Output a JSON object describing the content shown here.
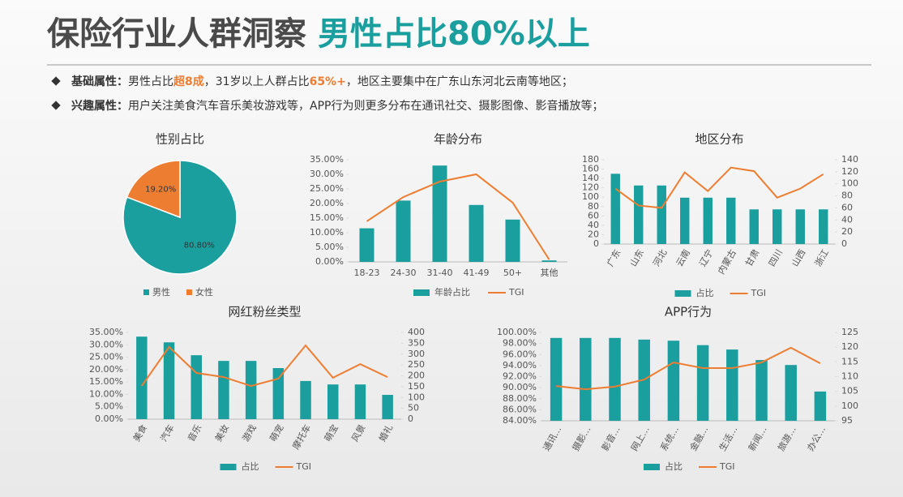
{
  "header": {
    "title": "保险行业人群洞察",
    "highlight": "男性占比80%以上"
  },
  "bullets": [
    {
      "label": "基础属性：",
      "segments": [
        {
          "text": "男性占比"
        },
        {
          "text": "超8成",
          "emphasis": true
        },
        {
          "text": "，31岁以上人群占比"
        },
        {
          "text": "65%+",
          "emphasis": true
        },
        {
          "text": "，地区主要集中在广东山东河北云南等地区；"
        }
      ]
    },
    {
      "label": "兴趣属性：",
      "segments": [
        {
          "text": "用户关注美食汽车音乐美妆游戏等，APP行为则更多分布在通讯社交、摄影图像、影音播放等；"
        }
      ]
    }
  ],
  "chart_data": [
    {
      "type": "pie",
      "title": "性别占比",
      "categories": [
        "男性",
        "女性"
      ],
      "values": [
        80.8,
        19.2
      ],
      "value_labels": [
        "80.80%",
        "19.20%"
      ],
      "colors": [
        "#1a9e9e",
        "#ed7d31"
      ]
    },
    {
      "type": "combo",
      "title": "年龄分布",
      "categories": [
        "18-23",
        "24-30",
        "31-40",
        "41-49",
        "50+",
        "其他"
      ],
      "ylim": [
        0,
        35
      ],
      "yticks": [
        {
          "value": 0,
          "label": "0.00%"
        },
        {
          "value": 5,
          "label": "5.00%"
        },
        {
          "value": 10,
          "label": "10.00%"
        },
        {
          "value": 15,
          "label": "15.00%"
        },
        {
          "value": 20,
          "label": "20.00%"
        },
        {
          "value": 25,
          "label": "25.00%"
        },
        {
          "value": 30,
          "label": "30.00%"
        },
        {
          "value": 35,
          "label": "35.00%"
        }
      ],
      "series": [
        {
          "name": "年龄占比",
          "type": "bar",
          "color": "#1a9e9e",
          "values": [
            11.5,
            21,
            33,
            19.5,
            14.5,
            0.5
          ]
        },
        {
          "name": "TGI",
          "type": "line",
          "color": "#ed7d31",
          "values": [
            13.9,
            22.2,
            27.5,
            30,
            20.3,
            0.8
          ]
        }
      ]
    },
    {
      "type": "combo",
      "title": "地区分布",
      "categories": [
        "广东",
        "山东",
        "河北",
        "云南",
        "辽宁",
        "内蒙古",
        "甘肃",
        "四川",
        "山西",
        "浙江"
      ],
      "ylim": [
        0,
        180
      ],
      "yticks": [
        0,
        20,
        40,
        60,
        80,
        100,
        120,
        140,
        160,
        180
      ],
      "y2lim": [
        0,
        140
      ],
      "y2ticks": [
        0,
        20,
        40,
        60,
        80,
        100,
        120,
        140
      ],
      "series": [
        {
          "name": "占比",
          "type": "bar",
          "color": "#1a9e9e",
          "values": [
            150,
            125,
            125,
            99,
            99,
            99,
            74,
            74,
            74,
            74
          ]
        },
        {
          "name": "TGI",
          "type": "line",
          "color": "#ed7d31",
          "axis": "y2",
          "values": [
            92,
            64,
            60,
            119,
            88,
            127,
            121,
            77,
            92,
            116
          ]
        }
      ]
    },
    {
      "type": "combo",
      "title": "网红粉丝类型",
      "categories": [
        "美食",
        "汽车",
        "音乐",
        "美妆",
        "游戏",
        "萌宠",
        "摩托车",
        "萌宝",
        "风景",
        "婚礼"
      ],
      "ylim": [
        0,
        35
      ],
      "yticks": [
        {
          "value": 0,
          "label": "0.00%"
        },
        {
          "value": 5,
          "label": "5.00%"
        },
        {
          "value": 10,
          "label": "10.00%"
        },
        {
          "value": 15,
          "label": "15.00%"
        },
        {
          "value": 20,
          "label": "20.00%"
        },
        {
          "value": 25,
          "label": "25.00%"
        },
        {
          "value": 30,
          "label": "30.00%"
        },
        {
          "value": 35,
          "label": "35.00%"
        }
      ],
      "y2lim": [
        0,
        400
      ],
      "y2ticks": [
        0,
        50,
        100,
        150,
        200,
        250,
        300,
        350,
        400
      ],
      "series": [
        {
          "name": "占比",
          "type": "bar",
          "color": "#1a9e9e",
          "values": [
            33.3,
            31,
            25.8,
            23.5,
            23.5,
            20.6,
            15.4,
            14,
            14,
            9.8
          ]
        },
        {
          "name": "TGI",
          "type": "line",
          "color": "#ed7d31",
          "axis": "y2",
          "values": [
            153,
            333,
            213,
            194,
            153,
            187,
            340,
            191,
            254,
            194
          ]
        }
      ]
    },
    {
      "type": "combo",
      "title": "APP行为",
      "categories": [
        "通讯…",
        "摄影…",
        "影音…",
        "网上…",
        "系统…",
        "金融…",
        "生活…",
        "新闻…",
        "旅游…",
        "办公…"
      ],
      "ylim": [
        84,
        100
      ],
      "yticks": [
        {
          "value": 84,
          "label": "84.00%"
        },
        {
          "value": 86,
          "label": "86.00%"
        },
        {
          "value": 88,
          "label": "88.00%"
        },
        {
          "value": 90,
          "label": "90.00%"
        },
        {
          "value": 92,
          "label": "92.00%"
        },
        {
          "value": 94,
          "label": "94.00%"
        },
        {
          "value": 96,
          "label": "96.00%"
        },
        {
          "value": 98,
          "label": "98.00%"
        },
        {
          "value": 100,
          "label": "100.00%"
        }
      ],
      "y2lim": [
        95,
        125
      ],
      "y2ticks": [
        95,
        100,
        105,
        110,
        115,
        120,
        125
      ],
      "series": [
        {
          "name": "占比",
          "type": "bar",
          "color": "#1a9e9e",
          "values": [
            99,
            99,
            99,
            98.7,
            98.5,
            97.7,
            96.9,
            95,
            94.1,
            89.3
          ]
        },
        {
          "name": "TGI",
          "type": "line",
          "color": "#ed7d31",
          "axis": "y2",
          "values": [
            106.8,
            105.7,
            106.6,
            109,
            114.8,
            112.9,
            112.9,
            114.8,
            119.8,
            114.5
          ]
        }
      ]
    }
  ]
}
